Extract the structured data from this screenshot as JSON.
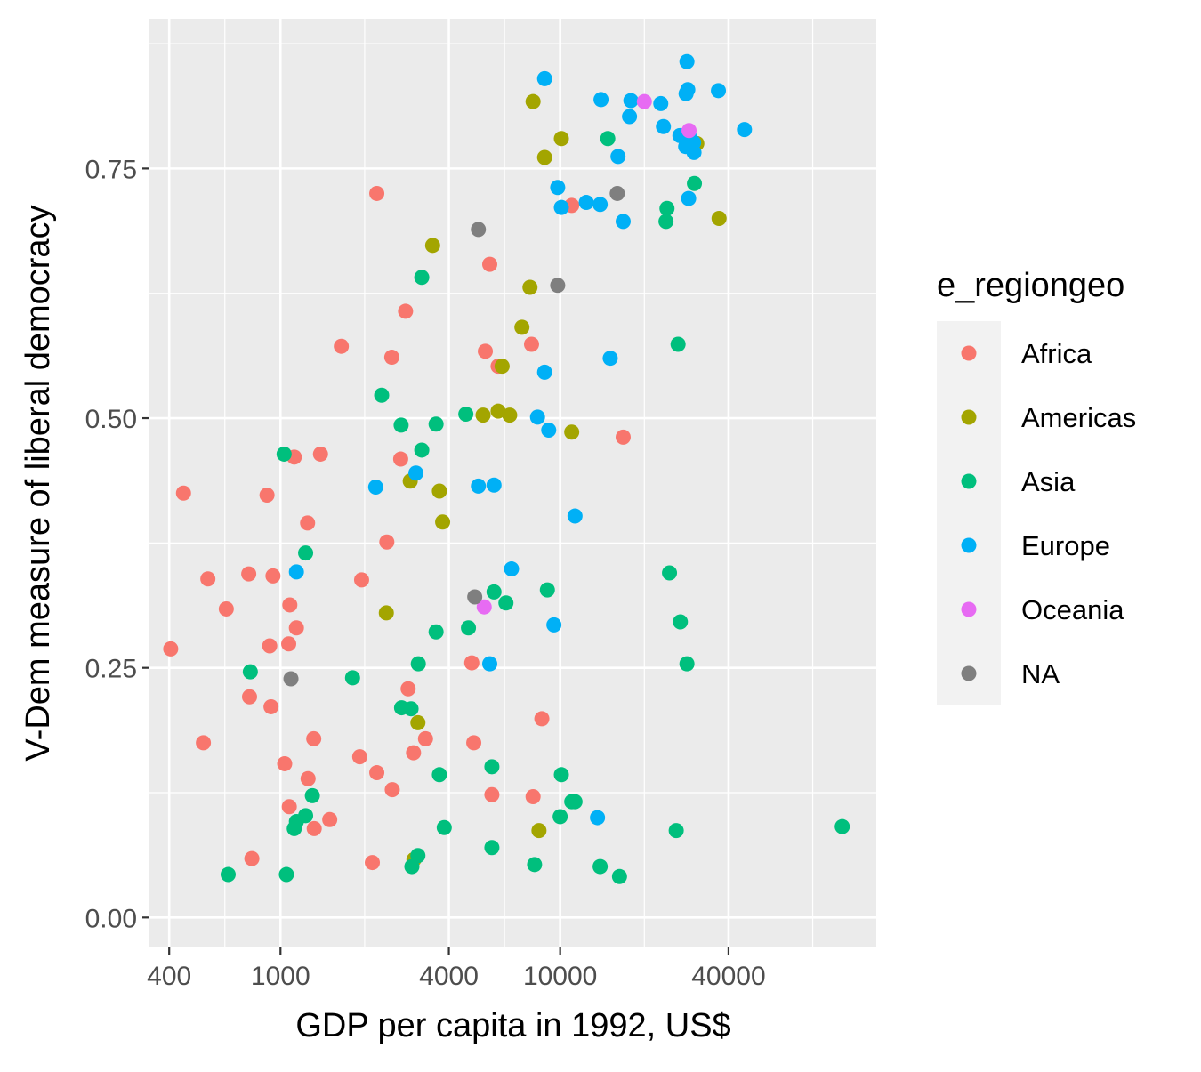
{
  "chart_data": {
    "type": "scatter",
    "title": "",
    "xlabel": "GDP per capita in 1992, US$",
    "ylabel": "V-Dem measure of liberal democracy",
    "x_scale": "log10",
    "xlim": [
      340,
      135000
    ],
    "ylim": [
      -0.03,
      0.9
    ],
    "x_ticks": [
      400,
      1000,
      4000,
      10000,
      40000
    ],
    "x_tick_labels": [
      "400",
      "1000",
      "4000",
      "10000",
      "40000"
    ],
    "y_ticks": [
      0,
      0.25,
      0.5,
      0.75
    ],
    "y_tick_labels": [
      "0.00",
      "0.25",
      "0.50",
      "0.75"
    ],
    "grid": true,
    "legend_title": "e_regiongeo",
    "legend_position": "right",
    "series": [
      {
        "name": "Africa",
        "color": "#F8766D",
        "points": [
          [
            2210,
            0.725
          ],
          [
            11000,
            0.713
          ],
          [
            5600,
            0.654
          ],
          [
            2800,
            0.607
          ],
          [
            1650,
            0.572
          ],
          [
            2500,
            0.561
          ],
          [
            5400,
            0.567
          ],
          [
            7900,
            0.574
          ],
          [
            6000,
            0.552
          ],
          [
            16800,
            0.481
          ],
          [
            450,
            0.425
          ],
          [
            895,
            0.423
          ],
          [
            1120,
            0.461
          ],
          [
            1390,
            0.464
          ],
          [
            2690,
            0.459
          ],
          [
            1250,
            0.395
          ],
          [
            2400,
            0.376
          ],
          [
            550,
            0.339
          ],
          [
            770,
            0.344
          ],
          [
            940,
            0.342
          ],
          [
            1950,
            0.338
          ],
          [
            640,
            0.309
          ],
          [
            1080,
            0.313
          ],
          [
            1140,
            0.29
          ],
          [
            915,
            0.272
          ],
          [
            1070,
            0.274
          ],
          [
            405,
            0.269
          ],
          [
            4830,
            0.255
          ],
          [
            2860,
            0.229
          ],
          [
            775,
            0.221
          ],
          [
            925,
            0.211
          ],
          [
            8600,
            0.199
          ],
          [
            530,
            0.175
          ],
          [
            1315,
            0.179
          ],
          [
            3300,
            0.179
          ],
          [
            4910,
            0.175
          ],
          [
            2990,
            0.165
          ],
          [
            1035,
            0.154
          ],
          [
            1920,
            0.161
          ],
          [
            2210,
            0.145
          ],
          [
            1255,
            0.139
          ],
          [
            2510,
            0.128
          ],
          [
            5700,
            0.123
          ],
          [
            8000,
            0.121
          ],
          [
            1075,
            0.111
          ],
          [
            1320,
            0.089
          ],
          [
            1500,
            0.098
          ],
          [
            790,
            0.059
          ],
          [
            2130,
            0.055
          ]
        ]
      },
      {
        "name": "Americas",
        "color": "#A3A500",
        "points": [
          [
            8000,
            0.817
          ],
          [
            10100,
            0.78
          ],
          [
            8800,
            0.761
          ],
          [
            37000,
            0.7
          ],
          [
            30800,
            0.775
          ],
          [
            3500,
            0.673
          ],
          [
            7800,
            0.631
          ],
          [
            7300,
            0.591
          ],
          [
            6200,
            0.552
          ],
          [
            5300,
            0.503
          ],
          [
            6000,
            0.507
          ],
          [
            6600,
            0.503
          ],
          [
            11000,
            0.486
          ],
          [
            2910,
            0.437
          ],
          [
            3700,
            0.427
          ],
          [
            3800,
            0.396
          ],
          [
            2390,
            0.305
          ],
          [
            3100,
            0.195
          ],
          [
            8400,
            0.087
          ],
          [
            3000,
            0.058
          ]
        ]
      },
      {
        "name": "Asia",
        "color": "#00BF7D",
        "points": [
          [
            14800,
            0.78
          ],
          [
            24100,
            0.71
          ],
          [
            23900,
            0.697
          ],
          [
            30200,
            0.735
          ],
          [
            3200,
            0.641
          ],
          [
            26400,
            0.574
          ],
          [
            2300,
            0.523
          ],
          [
            2700,
            0.493
          ],
          [
            3600,
            0.494
          ],
          [
            4600,
            0.504
          ],
          [
            3200,
            0.468
          ],
          [
            1030,
            0.464
          ],
          [
            1230,
            0.365
          ],
          [
            24600,
            0.345
          ],
          [
            9000,
            0.328
          ],
          [
            5800,
            0.326
          ],
          [
            6400,
            0.315
          ],
          [
            26900,
            0.296
          ],
          [
            3600,
            0.286
          ],
          [
            4700,
            0.29
          ],
          [
            780,
            0.246
          ],
          [
            3110,
            0.254
          ],
          [
            28400,
            0.254
          ],
          [
            1810,
            0.24
          ],
          [
            2710,
            0.21
          ],
          [
            2930,
            0.209
          ],
          [
            5700,
            0.151
          ],
          [
            3700,
            0.143
          ],
          [
            10100,
            0.143
          ],
          [
            11300,
            0.116
          ],
          [
            11000,
            0.116
          ],
          [
            1300,
            0.122
          ],
          [
            1230,
            0.102
          ],
          [
            1140,
            0.096
          ],
          [
            1120,
            0.089
          ],
          [
            10000,
            0.101
          ],
          [
            3850,
            0.09
          ],
          [
            26000,
            0.087
          ],
          [
            102000,
            0.091
          ],
          [
            5700,
            0.07
          ],
          [
            3100,
            0.062
          ],
          [
            8100,
            0.053
          ],
          [
            13900,
            0.051
          ],
          [
            16300,
            0.041
          ],
          [
            2950,
            0.051
          ],
          [
            650,
            0.043
          ],
          [
            1050,
            0.043
          ]
        ]
      },
      {
        "name": "Europe",
        "color": "#00B0F6",
        "points": [
          [
            28400,
            0.857
          ],
          [
            8800,
            0.84
          ],
          [
            28600,
            0.829
          ],
          [
            36800,
            0.828
          ],
          [
            28200,
            0.825
          ],
          [
            14000,
            0.819
          ],
          [
            17900,
            0.818
          ],
          [
            22900,
            0.815
          ],
          [
            17700,
            0.802
          ],
          [
            23400,
            0.792
          ],
          [
            45600,
            0.789
          ],
          [
            26800,
            0.783
          ],
          [
            28900,
            0.783
          ],
          [
            30000,
            0.776
          ],
          [
            28100,
            0.772
          ],
          [
            30100,
            0.766
          ],
          [
            16100,
            0.762
          ],
          [
            9800,
            0.731
          ],
          [
            12400,
            0.716
          ],
          [
            10100,
            0.711
          ],
          [
            13900,
            0.714
          ],
          [
            28800,
            0.72
          ],
          [
            16800,
            0.697
          ],
          [
            15100,
            0.56
          ],
          [
            8800,
            0.546
          ],
          [
            8300,
            0.501
          ],
          [
            9100,
            0.488
          ],
          [
            3050,
            0.445
          ],
          [
            2190,
            0.431
          ],
          [
            5100,
            0.432
          ],
          [
            5800,
            0.433
          ],
          [
            11300,
            0.402
          ],
          [
            6700,
            0.349
          ],
          [
            1140,
            0.346
          ],
          [
            9500,
            0.293
          ],
          [
            5600,
            0.254
          ],
          [
            13600,
            0.1
          ]
        ]
      },
      {
        "name": "Oceania",
        "color": "#E76BF3",
        "points": [
          [
            20000,
            0.817
          ],
          [
            28900,
            0.788
          ],
          [
            5350,
            0.311
          ]
        ]
      },
      {
        "name": "NA",
        "color": "#7F7F7F",
        "points": [
          [
            16000,
            0.725
          ],
          [
            5100,
            0.689
          ],
          [
            9800,
            0.633
          ],
          [
            4950,
            0.321
          ],
          [
            1090,
            0.239
          ]
        ]
      }
    ]
  }
}
